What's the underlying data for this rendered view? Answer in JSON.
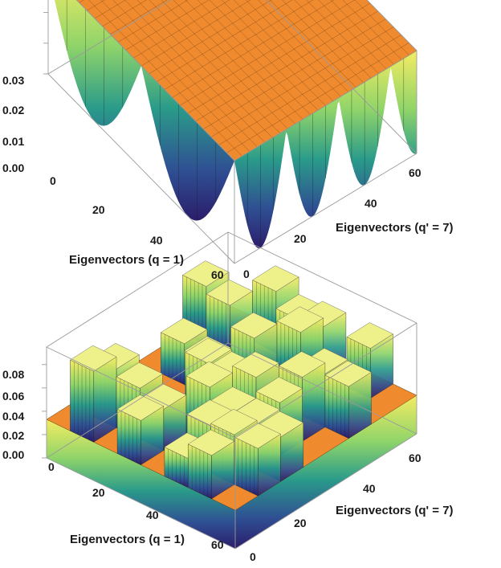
{
  "chart_data": [
    {
      "type": "surface3d",
      "name": "top",
      "x_axis": {
        "label": "Eigenvectors (q = 1)",
        "ticks": [
          "0",
          "20",
          "40",
          "60"
        ],
        "range": [
          0,
          64
        ]
      },
      "y_axis": {
        "label": "Eigenvectors (q' = 7)",
        "ticks": [
          "0",
          "20",
          "40",
          "60"
        ],
        "range": [
          0,
          64
        ]
      },
      "z_axis": {
        "ticks": [
          "0.00",
          "0.01",
          "0.02",
          "0.03"
        ],
        "range": [
          0,
          0.0335
        ]
      },
      "plateau_value": 0.0335,
      "oscillation": {
        "q_peaks": 1,
        "qprime_peaks": 7,
        "amplitude": 0.0335
      },
      "colors": {
        "plateau": "#f08a2e",
        "low": "#30206e",
        "mid": "#2a9b8a",
        "high": "#f4ec62"
      }
    },
    {
      "type": "surface3d",
      "name": "bottom",
      "x_axis": {
        "label": "Eigenvectors (q = 1)",
        "ticks": [
          "0",
          "20",
          "40",
          "60"
        ],
        "range": [
          0,
          64
        ]
      },
      "y_axis": {
        "label": "Eigenvectors (q' = 7)",
        "ticks": [
          "0",
          "20",
          "40",
          "60"
        ],
        "range": [
          0,
          64
        ]
      },
      "z_axis": {
        "ticks": [
          "0.00",
          "0.02",
          "0.04",
          "0.06",
          "0.08"
        ],
        "range": [
          0,
          0.095
        ]
      },
      "plateau_value": 0.033,
      "max_value": 0.095,
      "colors": {
        "plateau": "#f08a2e",
        "low": "#30206e",
        "mid": "#2a9b8a",
        "high": "#f4ec62"
      }
    }
  ]
}
